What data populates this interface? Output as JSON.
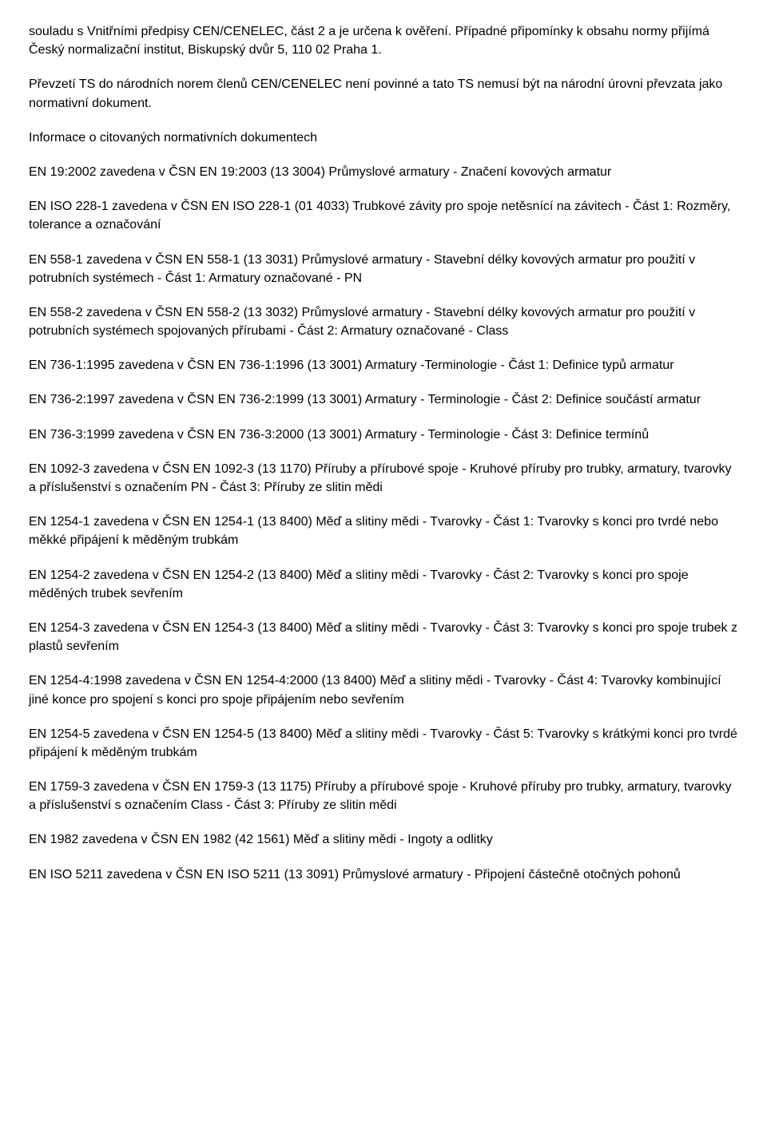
{
  "paragraphs": [
    "souladu s Vnitřními předpisy CEN/CENELEC, část 2 a je určena k ověření. Případné připomínky k obsahu normy přijímá Český normalizační institut, Biskupský dvůr 5, 110 02 Praha 1.",
    "Převzetí TS do národních norem členů CEN/CENELEC není povinné a tato TS nemusí být na národní úrovni převzata jako normativní dokument.",
    "Informace o citovaných normativních dokumentech",
    "EN 19:2002 zavedena v ČSN EN 19:2003 (13 3004) Průmyslové armatury - Značení kovových armatur",
    "EN ISO 228-1 zavedena v ČSN EN ISO 228-1 (01 4033) Trubkové závity pro spoje netěsnící na závitech - Část 1: Rozměry, tolerance a označování",
    "EN 558-1 zavedena v ČSN EN 558-1 (13 3031) Průmyslové armatury - Stavební délky kovových armatur pro použití v potrubních systémech - Část 1: Armatury označované - PN",
    "EN 558-2 zavedena v ČSN EN 558-2 (13 3032) Průmyslové armatury - Stavební délky kovových armatur pro použití v potrubních systémech spojovaných přírubami - Část 2: Armatury označované - Class",
    "EN 736-1:1995 zavedena v ČSN EN 736-1:1996 (13 3001) Armatury -Terminologie - Část 1: Definice typů armatur",
    "EN 736-2:1997 zavedena v ČSN EN 736-2:1999 (13 3001) Armatury - Terminologie - Část 2: Definice součástí armatur",
    "EN 736-3:1999 zavedena v ČSN EN 736-3:2000 (13 3001) Armatury - Terminologie - Část 3: Definice termínů",
    "EN 1092-3 zavedena v ČSN EN 1092-3 (13 1170) Příruby a přírubové spoje - Kruhové příruby pro trubky, armatury, tvarovky a příslušenství s označením PN - Část 3: Příruby ze slitin mědi",
    "EN 1254-1 zavedena v ČSN EN 1254-1 (13 8400) Měď a slitiny mědi - Tvarovky - Část 1: Tvarovky s konci pro tvrdé nebo měkké připájení k měděným trubkám",
    "EN 1254-2 zavedena v ČSN EN 1254-2 (13 8400) Měď a slitiny mědi - Tvarovky - Část 2: Tvarovky s konci pro spoje měděných trubek sevřením",
    "EN 1254-3 zavedena v ČSN EN 1254-3 (13 8400) Měď a slitiny mědi - Tvarovky - Část 3: Tvarovky s konci pro spoje trubek z plastů sevřením",
    "EN 1254-4:1998 zavedena v ČSN EN 1254-4:2000 (13 8400) Měď a slitiny mědi - Tvarovky - Část 4: Tvarovky kombinující jiné konce pro spojení s konci pro spoje připájením nebo sevřením",
    "EN 1254-5 zavedena v ČSN EN 1254-5 (13 8400) Měď a slitiny mědi - Tvarovky - Část 5: Tvarovky s krátkými konci pro tvrdé připájení k měděným trubkám",
    "EN 1759-3 zavedena v ČSN EN 1759-3 (13 1175) Příruby a přírubové spoje - Kruhové příruby pro trubky, armatury, tvarovky a příslušenství s označením Class - Část 3: Příruby ze slitin mědi",
    "EN 1982 zavedena v ČSN EN 1982 (42 1561) Měď a slitiny mědi - Ingoty a odlitky",
    "EN ISO 5211 zavedena v ČSN EN ISO 5211 (13 3091) Průmyslové armatury - Připojení částečně otočných pohonů"
  ]
}
